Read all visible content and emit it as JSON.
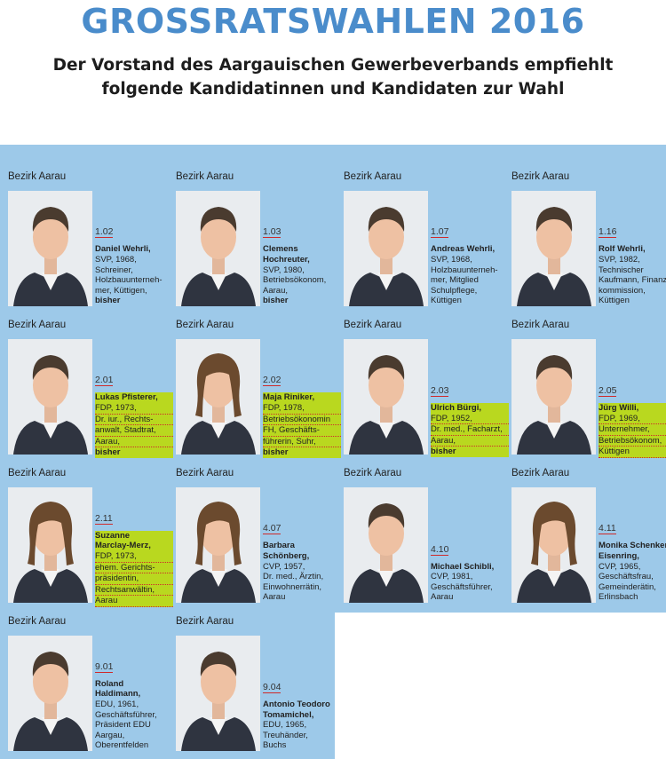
{
  "title": "GROSSRATSWAHLEN 2016",
  "subtitle_line1": "Der Vorstand des Aargauischen Gewerbeverbands empfiehlt",
  "subtitle_line2": "folgende Kandidatinnen und Kandidaten zur Wahl",
  "colors": {
    "title": "#4a8ccb",
    "panel": "#9dc9e9",
    "highlight": "#b9d81f"
  },
  "candidates": [
    {
      "bezirk": "Bezirk Aarau",
      "number": "1.02",
      "name_lines": [
        "Daniel Wehrli,"
      ],
      "details": [
        "SVP, 1968,",
        "Schreiner,",
        "Holzbauunterneh-",
        "mer, Küttigen,"
      ],
      "bisher": "bisher",
      "highlighted": false,
      "gender": "m"
    },
    {
      "bezirk": "Bezirk Aarau",
      "number": "1.03",
      "name_lines": [
        "Clemens",
        "Hochreuter,"
      ],
      "details": [
        "SVP, 1980,",
        "Betriebsökonom,",
        "Aarau,"
      ],
      "bisher": "bisher",
      "highlighted": false,
      "gender": "m"
    },
    {
      "bezirk": "Bezirk Aarau",
      "number": "1.07",
      "name_lines": [
        "Andreas Wehrli,"
      ],
      "details": [
        "SVP, 1968,",
        "Holzbauunterneh-",
        "mer, Mitglied",
        "Schulpflege,",
        "Küttigen"
      ],
      "bisher": "",
      "highlighted": false,
      "gender": "m"
    },
    {
      "bezirk": "Bezirk Aarau",
      "number": "1.16",
      "name_lines": [
        "Rolf Wehrli,"
      ],
      "details": [
        "SVP, 1982,",
        "Technischer",
        "Kaufmann, Finanz-",
        "kommission,",
        "Küttigen"
      ],
      "bisher": "",
      "highlighted": false,
      "gender": "m"
    },
    {
      "bezirk": "Bezirk Aarau",
      "number": "2.01",
      "name_lines": [
        "Lukas Pfisterer,"
      ],
      "details": [
        "FDP, 1973,",
        "Dr. iur., Rechts-",
        "anwalt, Stadtrat,",
        "Aarau,"
      ],
      "bisher": "bisher",
      "highlighted": true,
      "gender": "m"
    },
    {
      "bezirk": "Bezirk Aarau",
      "number": "2.02",
      "name_lines": [
        "Maja Riniker,"
      ],
      "details": [
        "FDP, 1978,",
        "Betriebsökonomin",
        "FH, Geschäfts-",
        "führerin, Suhr,"
      ],
      "bisher": "bisher",
      "highlighted": true,
      "gender": "f"
    },
    {
      "bezirk": "Bezirk Aarau",
      "number": "2.03",
      "name_lines": [
        "Ulrich Bürgi,"
      ],
      "details": [
        "FDP, 1952,",
        "Dr. med., Facharzt,",
        "Aarau,"
      ],
      "bisher": "bisher",
      "highlighted": true,
      "gender": "m"
    },
    {
      "bezirk": "Bezirk Aarau",
      "number": "2.05",
      "name_lines": [
        "Jürg Willi,"
      ],
      "details": [
        "FDP, 1969,",
        "Unternehmer,",
        "Betriebsökonom,",
        "Küttigen"
      ],
      "bisher": "",
      "highlighted": true,
      "gender": "m"
    },
    {
      "bezirk": "Bezirk Aarau",
      "number": "2.11",
      "name_lines": [
        "Suzanne",
        "Marclay-Merz,"
      ],
      "details": [
        "FDP, 1973,",
        "ehem. Gerichts-",
        "präsidentin,",
        "Rechtsanwältin,",
        "Aarau"
      ],
      "bisher": "",
      "highlighted": true,
      "gender": "f"
    },
    {
      "bezirk": "Bezirk Aarau",
      "number": "4.07",
      "name_lines": [
        "Barbara",
        "Schönberg,"
      ],
      "details": [
        "CVP, 1957,",
        "Dr. med., Ärztin,",
        "Einwohnerrätin,",
        "Aarau"
      ],
      "bisher": "",
      "highlighted": false,
      "gender": "f"
    },
    {
      "bezirk": "Bezirk Aarau",
      "number": "4.10",
      "name_lines": [
        "Michael Schibli,"
      ],
      "details": [
        "CVP, 1981,",
        "Geschäftsführer,",
        "Aarau"
      ],
      "bisher": "",
      "highlighted": false,
      "gender": "m"
    },
    {
      "bezirk": "Bezirk Aarau",
      "number": "4.11",
      "name_lines": [
        "Monika Schenker-",
        "Eisenring,"
      ],
      "details": [
        "CVP, 1965,",
        "Geschäftsfrau,",
        "Gemeinderätin,",
        "Erlinsbach"
      ],
      "bisher": "",
      "highlighted": false,
      "gender": "f"
    },
    {
      "bezirk": "Bezirk Aarau",
      "number": "9.01",
      "name_lines": [
        "Roland",
        "Haldimann,"
      ],
      "details": [
        "EDU, 1961,",
        "Geschäftsführer,",
        "Präsident EDU",
        "Aargau,",
        "Oberentfelden"
      ],
      "bisher": "",
      "highlighted": false,
      "gender": "m"
    },
    {
      "bezirk": "Bezirk Aarau",
      "number": "9.04",
      "name_lines": [
        "Antonio Teodoro",
        "Tomamichel,"
      ],
      "details": [
        "EDU, 1965,",
        "Treuhänder,",
        "Buchs"
      ],
      "bisher": "",
      "highlighted": false,
      "gender": "m"
    }
  ]
}
